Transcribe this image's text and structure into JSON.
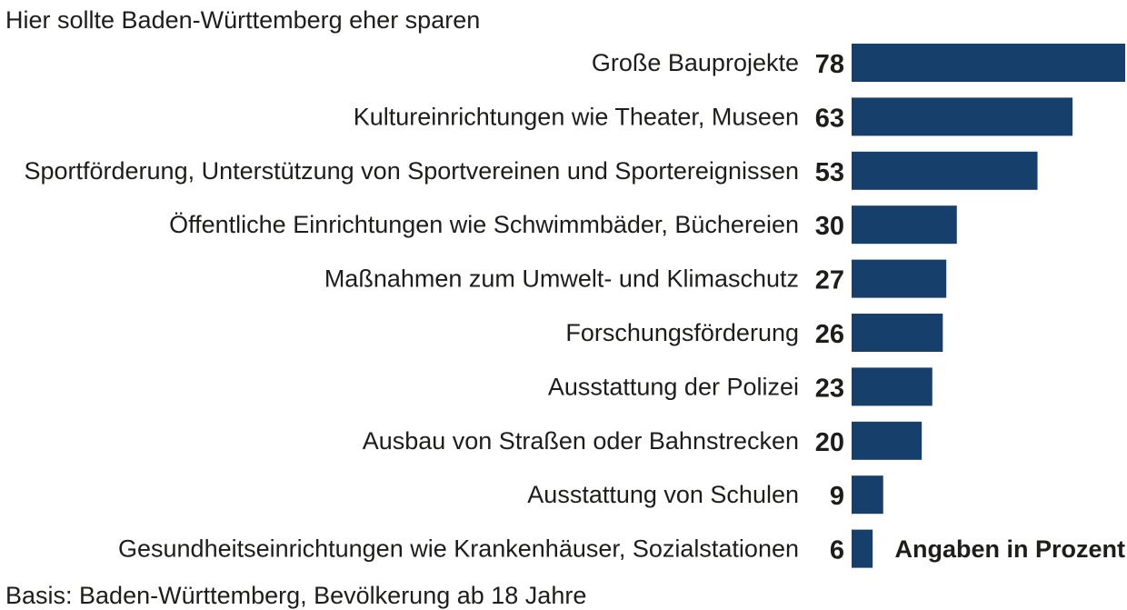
{
  "chart_data": {
    "type": "bar",
    "orientation": "horizontal",
    "subtitle": "Hier sollte Baden-Württemberg eher sparen",
    "categories": [
      "Große Bauprojekte",
      "Kultureinrichtungen wie Theater, Museen",
      "Sportförderung, Unterstützung von Sportvereinen und Sportereignissen",
      "Öffentliche Einrichtungen wie Schwimmbäder, Büchereien",
      "Maßnahmen zum Umwelt- und Klimaschutz",
      "Forschungsförderung",
      "Ausstattung der Polizei",
      "Ausbau von Straßen oder Bahnstrecken",
      "Ausstattung von Schulen",
      "Gesundheitseinrichtungen wie Krankenhäuser, Sozialstationen"
    ],
    "values": [
      78,
      63,
      53,
      30,
      27,
      26,
      23,
      20,
      9,
      6
    ],
    "unit_note": "Angaben in Prozent",
    "source": "Basis: Baden-Württemberg, Bevölkerung ab 18 Jahre",
    "xlim": [
      0,
      78
    ],
    "bar_color": "#173f6b",
    "grid": false
  }
}
